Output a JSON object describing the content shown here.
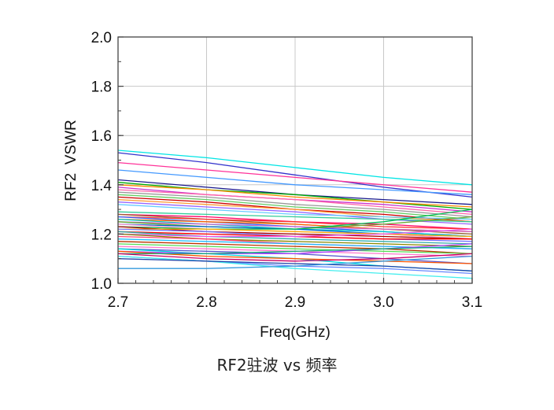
{
  "caption": "RF2驻波 vs 频率",
  "chart_data": {
    "type": "line",
    "title": "",
    "xlabel": "Freq(GHz)",
    "ylabel": "RF2  VSWR",
    "xlim": [
      2.7,
      3.1
    ],
    "ylim": [
      1.0,
      2.0
    ],
    "x_ticks": [
      2.7,
      2.8,
      2.9,
      3.0,
      3.1
    ],
    "x_tick_labels": [
      "2.7",
      "2.8",
      "2.9",
      "3.0",
      "3.1"
    ],
    "y_ticks": [
      1.0,
      1.2,
      1.4,
      1.6,
      1.8,
      2.0
    ],
    "y_tick_labels": [
      "1.0",
      "1.2",
      "1.4",
      "1.6",
      "1.8",
      "2.0"
    ],
    "grid": true,
    "legend": "none",
    "x": [
      2.7,
      2.8,
      2.9,
      3.0,
      3.1
    ],
    "series": [
      {
        "color": "#00e5e5",
        "values": [
          1.54,
          1.51,
          1.47,
          1.43,
          1.4
        ]
      },
      {
        "color": "#3333cc",
        "values": [
          1.53,
          1.49,
          1.44,
          1.39,
          1.35
        ]
      },
      {
        "color": "#ff3399",
        "values": [
          1.49,
          1.46,
          1.43,
          1.4,
          1.37
        ]
      },
      {
        "color": "#4499ff",
        "values": [
          1.46,
          1.43,
          1.4,
          1.38,
          1.36
        ]
      },
      {
        "color": "#1a1a8c",
        "values": [
          1.42,
          1.39,
          1.36,
          1.34,
          1.32
        ]
      },
      {
        "color": "#00aa00",
        "values": [
          1.41,
          1.38,
          1.36,
          1.33,
          1.3
        ]
      },
      {
        "color": "#ff8800",
        "values": [
          1.4,
          1.38,
          1.35,
          1.33,
          1.31
        ]
      },
      {
        "color": "#cc33cc",
        "values": [
          1.39,
          1.36,
          1.34,
          1.32,
          1.29
        ]
      },
      {
        "color": "#ff66aa",
        "values": [
          1.38,
          1.36,
          1.34,
          1.31,
          1.28
        ]
      },
      {
        "color": "#999999",
        "values": [
          1.37,
          1.35,
          1.32,
          1.3,
          1.27
        ]
      },
      {
        "color": "#66cc66",
        "values": [
          1.36,
          1.34,
          1.31,
          1.29,
          1.26
        ]
      },
      {
        "color": "#cc0000",
        "values": [
          1.35,
          1.33,
          1.3,
          1.28,
          1.25
        ]
      },
      {
        "color": "#ff9933",
        "values": [
          1.34,
          1.32,
          1.3,
          1.27,
          1.25
        ]
      },
      {
        "color": "#9966ff",
        "values": [
          1.33,
          1.31,
          1.29,
          1.26,
          1.24
        ]
      },
      {
        "color": "#66ccff",
        "values": [
          1.32,
          1.3,
          1.28,
          1.27,
          1.26
        ]
      },
      {
        "color": "#33cc99",
        "values": [
          1.29,
          1.28,
          1.27,
          1.26,
          1.25
        ]
      },
      {
        "color": "#ff0066",
        "values": [
          1.28,
          1.27,
          1.25,
          1.24,
          1.22
        ]
      },
      {
        "color": "#996633",
        "values": [
          1.28,
          1.26,
          1.24,
          1.22,
          1.2
        ]
      },
      {
        "color": "#ff3333",
        "values": [
          1.27,
          1.26,
          1.25,
          1.23,
          1.22
        ]
      },
      {
        "color": "#3366ff",
        "values": [
          1.27,
          1.25,
          1.23,
          1.21,
          1.19
        ]
      },
      {
        "color": "#ff6600",
        "values": [
          1.26,
          1.25,
          1.24,
          1.22,
          1.21
        ]
      },
      {
        "color": "#00cccc",
        "values": [
          1.26,
          1.24,
          1.22,
          1.21,
          1.19
        ]
      },
      {
        "color": "#cc66cc",
        "values": [
          1.25,
          1.24,
          1.23,
          1.22,
          1.21
        ]
      },
      {
        "color": "#66aa33",
        "values": [
          1.25,
          1.23,
          1.22,
          1.24,
          1.27
        ]
      },
      {
        "color": "#0066cc",
        "values": [
          1.24,
          1.23,
          1.22,
          1.2,
          1.19
        ]
      },
      {
        "color": "#ff99cc",
        "values": [
          1.24,
          1.22,
          1.21,
          1.2,
          1.18
        ]
      },
      {
        "color": "#00bb55",
        "values": [
          1.23,
          1.22,
          1.22,
          1.25,
          1.3
        ]
      },
      {
        "color": "#aa0000",
        "values": [
          1.23,
          1.21,
          1.2,
          1.19,
          1.18
        ]
      },
      {
        "color": "#ffaa00",
        "values": [
          1.22,
          1.22,
          1.21,
          1.2,
          1.19
        ]
      },
      {
        "color": "#7777ff",
        "values": [
          1.22,
          1.21,
          1.19,
          1.18,
          1.17
        ]
      },
      {
        "color": "#ff0000",
        "values": [
          1.21,
          1.2,
          1.19,
          1.18,
          1.18
        ]
      },
      {
        "color": "#33aaaa",
        "values": [
          1.21,
          1.19,
          1.18,
          1.17,
          1.16
        ]
      },
      {
        "color": "#ee55ee",
        "values": [
          1.2,
          1.19,
          1.19,
          1.2,
          1.22
        ]
      },
      {
        "color": "#888800",
        "values": [
          1.2,
          1.18,
          1.17,
          1.16,
          1.15
        ]
      },
      {
        "color": "#ff4477",
        "values": [
          1.19,
          1.18,
          1.16,
          1.15,
          1.14
        ]
      },
      {
        "color": "#22bbff",
        "values": [
          1.18,
          1.17,
          1.16,
          1.15,
          1.14
        ]
      },
      {
        "color": "#bb3300",
        "values": [
          1.17,
          1.16,
          1.15,
          1.14,
          1.12
        ]
      },
      {
        "color": "#55dd55",
        "values": [
          1.16,
          1.15,
          1.14,
          1.13,
          1.12
        ]
      },
      {
        "color": "#ff77cc",
        "values": [
          1.15,
          1.14,
          1.13,
          1.12,
          1.11
        ]
      },
      {
        "color": "#5555cc",
        "values": [
          1.14,
          1.13,
          1.12,
          1.1,
          1.08
        ]
      },
      {
        "color": "#00dddd",
        "values": [
          1.14,
          1.12,
          1.1,
          1.07,
          1.05
        ]
      },
      {
        "color": "#aa44ff",
        "values": [
          1.13,
          1.12,
          1.12,
          1.14,
          1.16
        ]
      },
      {
        "color": "#ff5500",
        "values": [
          1.13,
          1.11,
          1.1,
          1.09,
          1.08
        ]
      },
      {
        "color": "#11aa77",
        "values": [
          1.12,
          1.12,
          1.13,
          1.14,
          1.15
        ]
      },
      {
        "color": "#cc0066",
        "values": [
          1.12,
          1.1,
          1.09,
          1.1,
          1.12
        ]
      },
      {
        "color": "#6688ff",
        "values": [
          1.11,
          1.09,
          1.07,
          1.06,
          1.04
        ]
      },
      {
        "color": "#44eeee",
        "values": [
          1.11,
          1.09,
          1.06,
          1.04,
          1.02
        ]
      },
      {
        "color": "#2244aa",
        "values": [
          1.1,
          1.09,
          1.08,
          1.07,
          1.05
        ]
      },
      {
        "color": "#3399dd",
        "values": [
          1.06,
          1.06,
          1.07,
          1.09,
          1.11
        ]
      }
    ]
  }
}
